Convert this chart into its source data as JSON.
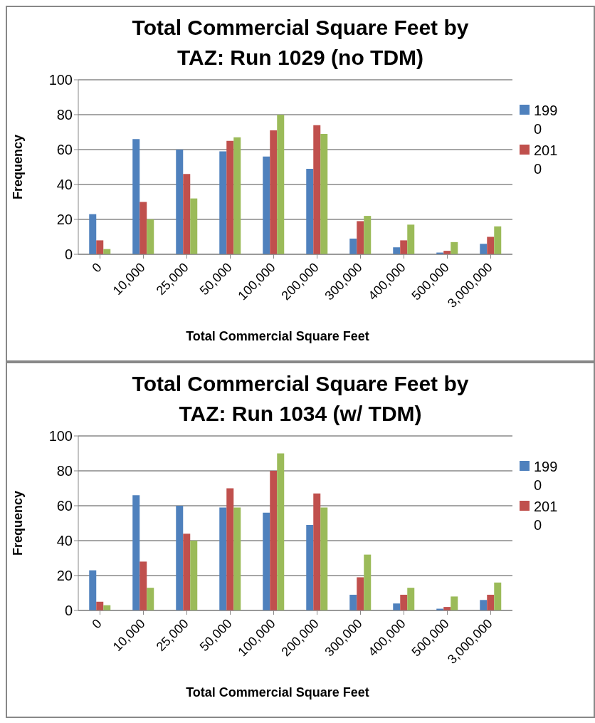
{
  "chart_data": [
    {
      "type": "bar",
      "title": "Total Commercial Square Feet by TAZ: Run 1029 (no TDM)",
      "xlabel": "Total Commercial Square Feet",
      "ylabel": "Frequency",
      "categories": [
        "0",
        "10,000",
        "25,000",
        "50,000",
        "100,000",
        "200,000",
        "300,000",
        "400,000",
        "500,000",
        "3,000,000"
      ],
      "series": [
        {
          "name": "1990",
          "color": "#4f81bd",
          "values": [
            23,
            66,
            60,
            59,
            56,
            49,
            9,
            4,
            1,
            6
          ]
        },
        {
          "name": "2010",
          "color": "#c0504d",
          "values": [
            8,
            30,
            46,
            65,
            71,
            74,
            19,
            8,
            2,
            10
          ]
        },
        {
          "color": "#9bbb59",
          "values": [
            3,
            20,
            32,
            67,
            80,
            69,
            22,
            17,
            7,
            16
          ]
        }
      ],
      "ylim": [
        0,
        100
      ],
      "yticks": [
        0,
        20,
        40,
        60,
        80,
        100
      ],
      "grid": "y",
      "legend": "right"
    },
    {
      "type": "bar",
      "title": "Total Commercial Square Feet by TAZ: Run 1034 (w/ TDM)",
      "xlabel": "Total Commercial Square Feet",
      "ylabel": "Frequency",
      "categories": [
        "0",
        "10,000",
        "25,000",
        "50,000",
        "100,000",
        "200,000",
        "300,000",
        "400,000",
        "500,000",
        "3,000,000"
      ],
      "series": [
        {
          "name": "1990",
          "color": "#4f81bd",
          "values": [
            23,
            66,
            60,
            59,
            56,
            49,
            9,
            4,
            1,
            6
          ]
        },
        {
          "name": "2010",
          "color": "#c0504d",
          "values": [
            5,
            28,
            44,
            70,
            80,
            67,
            19,
            9,
            2,
            9
          ]
        },
        {
          "color": "#9bbb59",
          "values": [
            3,
            13,
            40,
            59,
            90,
            59,
            32,
            13,
            8,
            16
          ]
        }
      ],
      "ylim": [
        0,
        100
      ],
      "yticks": [
        0,
        20,
        40,
        60,
        80,
        100
      ],
      "grid": "y",
      "legend": "right"
    }
  ]
}
